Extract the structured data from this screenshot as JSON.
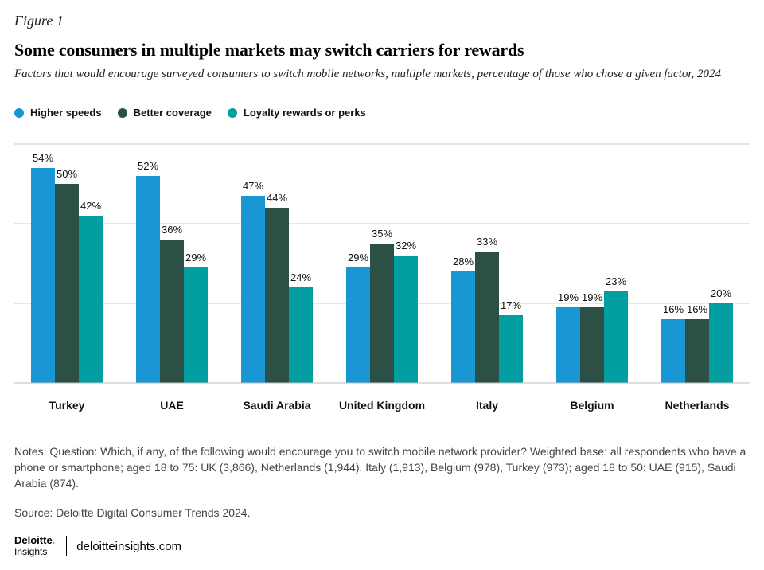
{
  "figure_label": "Figure 1",
  "footer": {
    "notes": "Notes: Question: Which, if any, of the following would encourage you to switch mobile network provider? Weighted base: all respondents who have a phone or smartphone; aged 18 to 75: UK (3,866), Netherlands (1,944), Italy (1,913), Belgium (978), Turkey (973); aged 18 to 50: UAE (915), Saudi Arabia (874).",
    "source": "Source: Deloitte Digital Consumer Trends 2024.",
    "brand_name": "Deloitte",
    "brand_dot": ".",
    "brand_sub": "Insights",
    "url": "deloitteinsights.com"
  },
  "chart_data": {
    "type": "bar",
    "title": "Some consumers in multiple markets may switch carriers for rewards",
    "subtitle": "Factors that would encourage surveyed consumers to switch mobile networks, multiple markets, percentage of those who chose a given factor, 2024",
    "categories": [
      "Turkey",
      "UAE",
      "Saudi Arabia",
      "United Kingdom",
      "Italy",
      "Belgium",
      "Netherlands"
    ],
    "series": [
      {
        "name": "Higher speeds",
        "color": "#1897d4",
        "values": [
          54,
          52,
          47,
          29,
          28,
          19,
          16
        ]
      },
      {
        "name": "Better coverage",
        "color": "#2c5046",
        "values": [
          50,
          36,
          44,
          35,
          33,
          19,
          16
        ]
      },
      {
        "name": "Loyalty rewards or perks",
        "color": "#039ea1",
        "values": [
          42,
          29,
          24,
          32,
          17,
          23,
          20
        ]
      }
    ],
    "value_suffix": "%",
    "ylim": [
      0,
      60
    ],
    "gridlines": [
      20,
      40,
      60
    ],
    "xlabel": "",
    "ylabel": "",
    "legend": "top-left",
    "grid": true
  }
}
